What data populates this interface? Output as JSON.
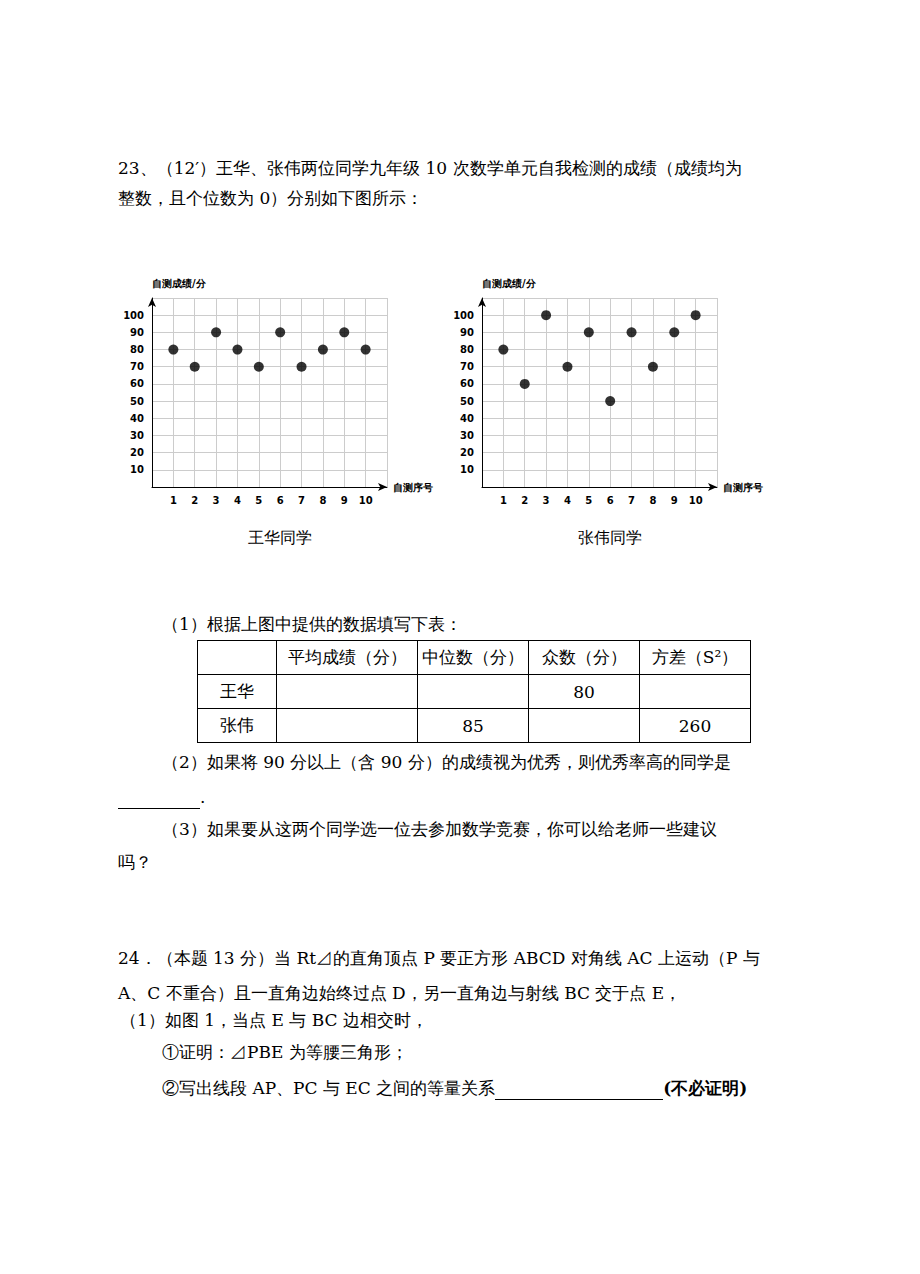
{
  "problem23": {
    "lines": [
      "23、（12′）王华、张伟两位同学九年级 10 次数学单元自我检测的成绩（成绩均为",
      "整数，且个位数为 0）分别如下图所示："
    ],
    "q1": "（1）根据上图中提供的数据填写下表：",
    "table": {
      "header": [
        null,
        "平均成绩（分）",
        "中位数（分）",
        "众数（分）",
        "方差（S²）"
      ],
      "rows": [
        [
          "王华",
          null,
          null,
          80,
          null
        ],
        [
          "张伟",
          null,
          85,
          null,
          260
        ]
      ]
    },
    "q2": "（2）如果将 90 分以上（含 90 分）的成绩视为优秀，则优秀率高的同学是",
    "q2_end": ".",
    "q3": [
      "（3）如果要从这两个同学选一位去参加数学竞赛，你可以给老师一些建议",
      "吗？"
    ]
  },
  "chart_data": [
    {
      "type": "scatter",
      "title": "王华同学",
      "x": [
        1,
        2,
        3,
        4,
        5,
        6,
        7,
        8,
        9,
        10
      ],
      "values": [
        80,
        70,
        90,
        80,
        70,
        90,
        70,
        80,
        90,
        80
      ],
      "x_label": "自测序号",
      "y_label": "自测成绩/分",
      "xlim": [
        0,
        11
      ],
      "ylim": [
        0,
        110
      ],
      "xticks": [
        1,
        2,
        3,
        4,
        5,
        6,
        7,
        8,
        9,
        10
      ],
      "yticks": [
        10,
        20,
        30,
        40,
        50,
        60,
        70,
        80,
        90,
        100
      ],
      "grid": true,
      "color": "#000000",
      "marker": "circle"
    },
    {
      "type": "scatter",
      "title": "张伟同学",
      "x": [
        1,
        2,
        3,
        4,
        5,
        6,
        7,
        8,
        9,
        10
      ],
      "values": [
        80,
        60,
        100,
        70,
        90,
        50,
        90,
        70,
        90,
        100
      ],
      "x_label": "自测序号",
      "y_label": "自测成绩/分",
      "xlim": [
        0,
        11
      ],
      "ylim": [
        0,
        110
      ],
      "xticks": [
        1,
        2,
        3,
        4,
        5,
        6,
        7,
        8,
        9,
        10
      ],
      "yticks": [
        10,
        20,
        30,
        40,
        50,
        60,
        70,
        80,
        90,
        100
      ],
      "grid": true,
      "color": "#000000",
      "marker": "circle"
    }
  ],
  "problem24": {
    "lines": [
      "24．（本题 13 分）当 Rt⊿的直角顶点 P 要正方形 ABCD 对角线 AC 上运动（P 与",
      "A、C 不重合）且一直角边始终过点 D，另一直角边与射线 BC 交于点 E，",
      "（1）如图 1，当点 E 与 BC 边相交时，",
      "①证明：⊿PBE 为等腰三角形；",
      "②写出线段 AP、PC 与 EC 之间的等量关系"
    ],
    "note": "(不必证明)"
  }
}
